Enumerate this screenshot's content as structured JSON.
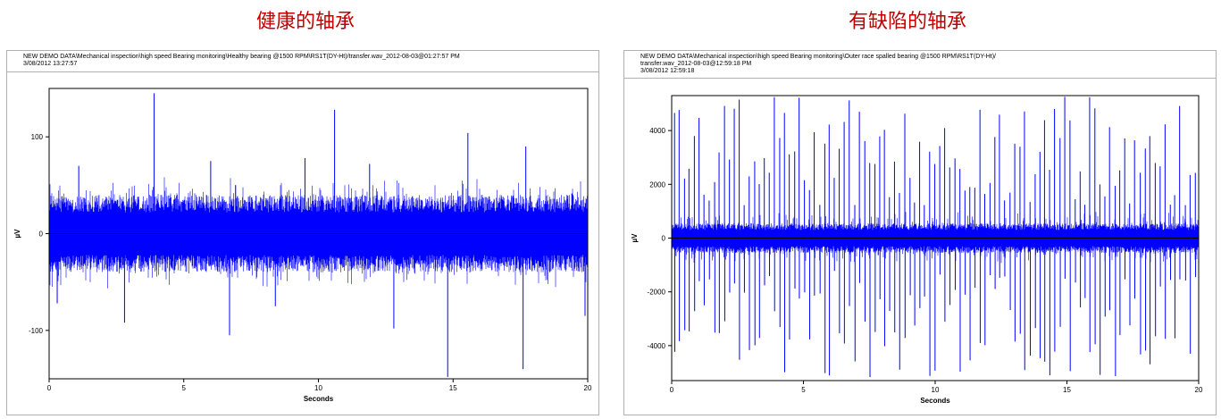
{
  "captions": {
    "left": "健康的轴承",
    "right": "有缺陷的轴承"
  },
  "chart_data": [
    {
      "type": "line",
      "header_lines": [
        "NEW DEMO DATA\\Mechanical inspection\\high speed Bearing monitoring\\Healthy bearing @1500 RPM\\RS1T(DY-Ht)/transfer.wav_2012-08-03@01:27:57 PM",
        "3/08/2012 13:27:57"
      ],
      "xlabel": "Seconds",
      "ylabel": "µV",
      "xlim": [
        0,
        20
      ],
      "ylim": [
        -150,
        150
      ],
      "xticks": [
        0,
        5,
        10,
        15,
        20
      ],
      "yticks": [
        -100,
        0,
        100
      ],
      "series_color": "#0000ff",
      "zero_line_color": "#000000",
      "band": {
        "positive_envelope": 40,
        "negative_envelope": -40,
        "peak_positive": 60,
        "peak_negative": -60
      },
      "spikes": [
        {
          "x": 3.9,
          "y": 145
        },
        {
          "x": 10.6,
          "y": 128
        },
        {
          "x": 15.55,
          "y": 104
        },
        {
          "x": 17.7,
          "y": 90
        },
        {
          "x": 14.8,
          "y": -148
        },
        {
          "x": 17.6,
          "y": -140
        },
        {
          "x": 6.7,
          "y": -105
        },
        {
          "x": 12.8,
          "y": -98
        },
        {
          "x": 19.9,
          "y": -85
        },
        {
          "x": 2.8,
          "y": -92
        },
        {
          "x": 6.0,
          "y": 75
        },
        {
          "x": 9.5,
          "y": 78
        },
        {
          "x": 0.3,
          "y": -72
        },
        {
          "x": 1.1,
          "y": 70
        },
        {
          "x": 8.4,
          "y": -75
        },
        {
          "x": 11.9,
          "y": 72
        }
      ]
    },
    {
      "type": "line",
      "header_lines": [
        "NEW DEMO DATA\\Mechanical inspection\\high speed Bearing monitoring\\Outer race spalled bearing @1500 RPM\\RS1T(DY-Ht)/",
        "transfer.wav_2012-08-03@12:59:18 PM",
        "3/08/2012 12:59:18"
      ],
      "xlabel": "Seconds",
      "ylabel": "µV",
      "xlim": [
        0,
        20
      ],
      "ylim": [
        -5300,
        5300
      ],
      "xticks": [
        0,
        5,
        10,
        15,
        20
      ],
      "yticks": [
        -4000,
        -2000,
        0,
        2000,
        4000
      ],
      "series_color": "#0000ff",
      "zero_line_color": "#000000",
      "band": {
        "positive_envelope": 550,
        "negative_envelope": -550,
        "peak_positive": 1000,
        "peak_negative": -1000
      },
      "impact_interval_s": 0.19,
      "spike_range": {
        "pos_min": 1200,
        "pos_max": 5300,
        "neg_min": -1200,
        "neg_max": -5200
      }
    }
  ]
}
